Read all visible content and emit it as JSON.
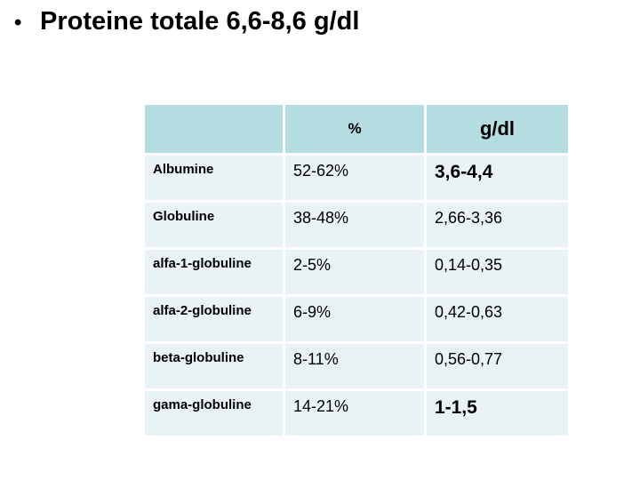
{
  "title": {
    "bullet": "•",
    "text": "Proteine totale 6,6-8,6 g/dl"
  },
  "table": {
    "headers": [
      "",
      "%",
      "g/dl"
    ],
    "rows": [
      {
        "name": "Albumine",
        "percent": "52-62%",
        "gdl": "3,6-4,4",
        "gdl_emphasis": true
      },
      {
        "name": "Globuline",
        "percent": "38-48%",
        "gdl": "2,66-3,36",
        "gdl_emphasis": false
      },
      {
        "name": "alfa-1-globuline",
        "percent": "2-5%",
        "gdl": "0,14-0,35",
        "gdl_emphasis": false
      },
      {
        "name": "alfa-2-globuline",
        "percent": "6-9%",
        "gdl": "0,42-0,63",
        "gdl_emphasis": false
      },
      {
        "name": "beta-globuline",
        "percent": "8-11%",
        "gdl": "0,56-0,77",
        "gdl_emphasis": false
      },
      {
        "name": "gama-globuline",
        "percent": "14-21%",
        "gdl": "1-1,5",
        "gdl_emphasis": true
      }
    ],
    "colors": {
      "header_bg": "#b5dde1",
      "row_bg": "#e9f2f4",
      "text": "#000000",
      "page_bg": "#ffffff"
    }
  }
}
